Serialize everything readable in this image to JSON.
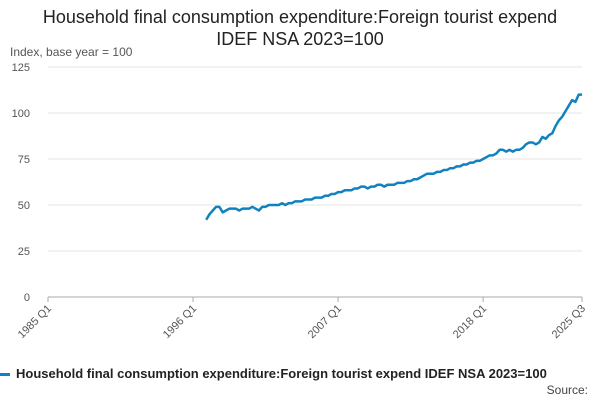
{
  "chart_data": {
    "type": "line",
    "title": "Household final consumption expenditure:Foreign tourist expend IDEF NSA 2023=100",
    "y_label": "Index, base year = 100",
    "source": "Source:",
    "categories": [
      "1985 Q1",
      null,
      null,
      null,
      null,
      null,
      null,
      null,
      null,
      null,
      null,
      null,
      null,
      null,
      null,
      null,
      null,
      null,
      null,
      null,
      null,
      null,
      null,
      null,
      null,
      null,
      null,
      null,
      null,
      null,
      null,
      null,
      null,
      null,
      null,
      null,
      null,
      null,
      null,
      null,
      null,
      null,
      null,
      null,
      "1996 Q1",
      null,
      null,
      null,
      null,
      null,
      null,
      null,
      null,
      null,
      null,
      null,
      null,
      null,
      null,
      null,
      null,
      null,
      null,
      null,
      null,
      null,
      null,
      null,
      null,
      null,
      null,
      null,
      null,
      null,
      null,
      null,
      null,
      null,
      null,
      null,
      null,
      null,
      null,
      null,
      null,
      null,
      null,
      null,
      "2007 Q1",
      null,
      null,
      null,
      null,
      null,
      null,
      null,
      null,
      null,
      null,
      null,
      null,
      null,
      null,
      null,
      null,
      null,
      null,
      null,
      null,
      null,
      null,
      null,
      null,
      null,
      null,
      null,
      null,
      null,
      null,
      null,
      null,
      null,
      null,
      null,
      null,
      null,
      null,
      null,
      null,
      null,
      null,
      null,
      "2018 Q1",
      null,
      null,
      null,
      null,
      null,
      null,
      null,
      null,
      null,
      null,
      null,
      null,
      null,
      null,
      null,
      null,
      null,
      null,
      null,
      null,
      null,
      null,
      null,
      null,
      null,
      null,
      null,
      null,
      null,
      "2025 Q3"
    ],
    "series": [
      {
        "name": "Household final consumption expenditure:Foreign tourist expend IDEF NSA 2023=100",
        "color": "#0f82bf",
        "values": [
          null,
          null,
          null,
          null,
          null,
          null,
          null,
          null,
          null,
          null,
          null,
          null,
          null,
          null,
          null,
          null,
          null,
          null,
          null,
          null,
          null,
          null,
          null,
          null,
          null,
          null,
          null,
          null,
          null,
          null,
          null,
          null,
          null,
          null,
          null,
          null,
          null,
          null,
          null,
          null,
          null,
          null,
          null,
          null,
          null,
          null,
          null,
          null,
          42,
          45,
          47,
          49,
          49,
          46,
          47,
          48,
          48,
          48,
          47,
          48,
          48,
          48,
          49,
          48,
          47,
          49,
          49,
          50,
          50,
          50,
          50,
          51,
          50,
          51,
          51,
          52,
          52,
          52,
          53,
          53,
          53,
          54,
          54,
          54,
          55,
          55,
          56,
          56,
          57,
          57,
          58,
          58,
          58,
          59,
          59,
          60,
          60,
          59,
          60,
          60,
          61,
          61,
          60,
          61,
          61,
          61,
          62,
          62,
          62,
          63,
          63,
          64,
          64,
          65,
          66,
          67,
          67,
          67,
          68,
          68,
          69,
          69,
          70,
          70,
          71,
          71,
          72,
          72,
          73,
          73,
          74,
          74,
          75,
          76,
          77,
          77,
          78,
          80,
          80,
          79,
          80,
          79,
          80,
          80,
          81,
          83,
          84,
          84,
          83,
          84,
          87,
          86,
          88,
          89,
          93,
          96,
          98,
          101,
          104,
          107,
          106,
          110,
          110
        ]
      }
    ],
    "ylim": [
      0,
      125
    ],
    "yticks": [
      0,
      25,
      50,
      75,
      100,
      125
    ],
    "grid": true
  }
}
